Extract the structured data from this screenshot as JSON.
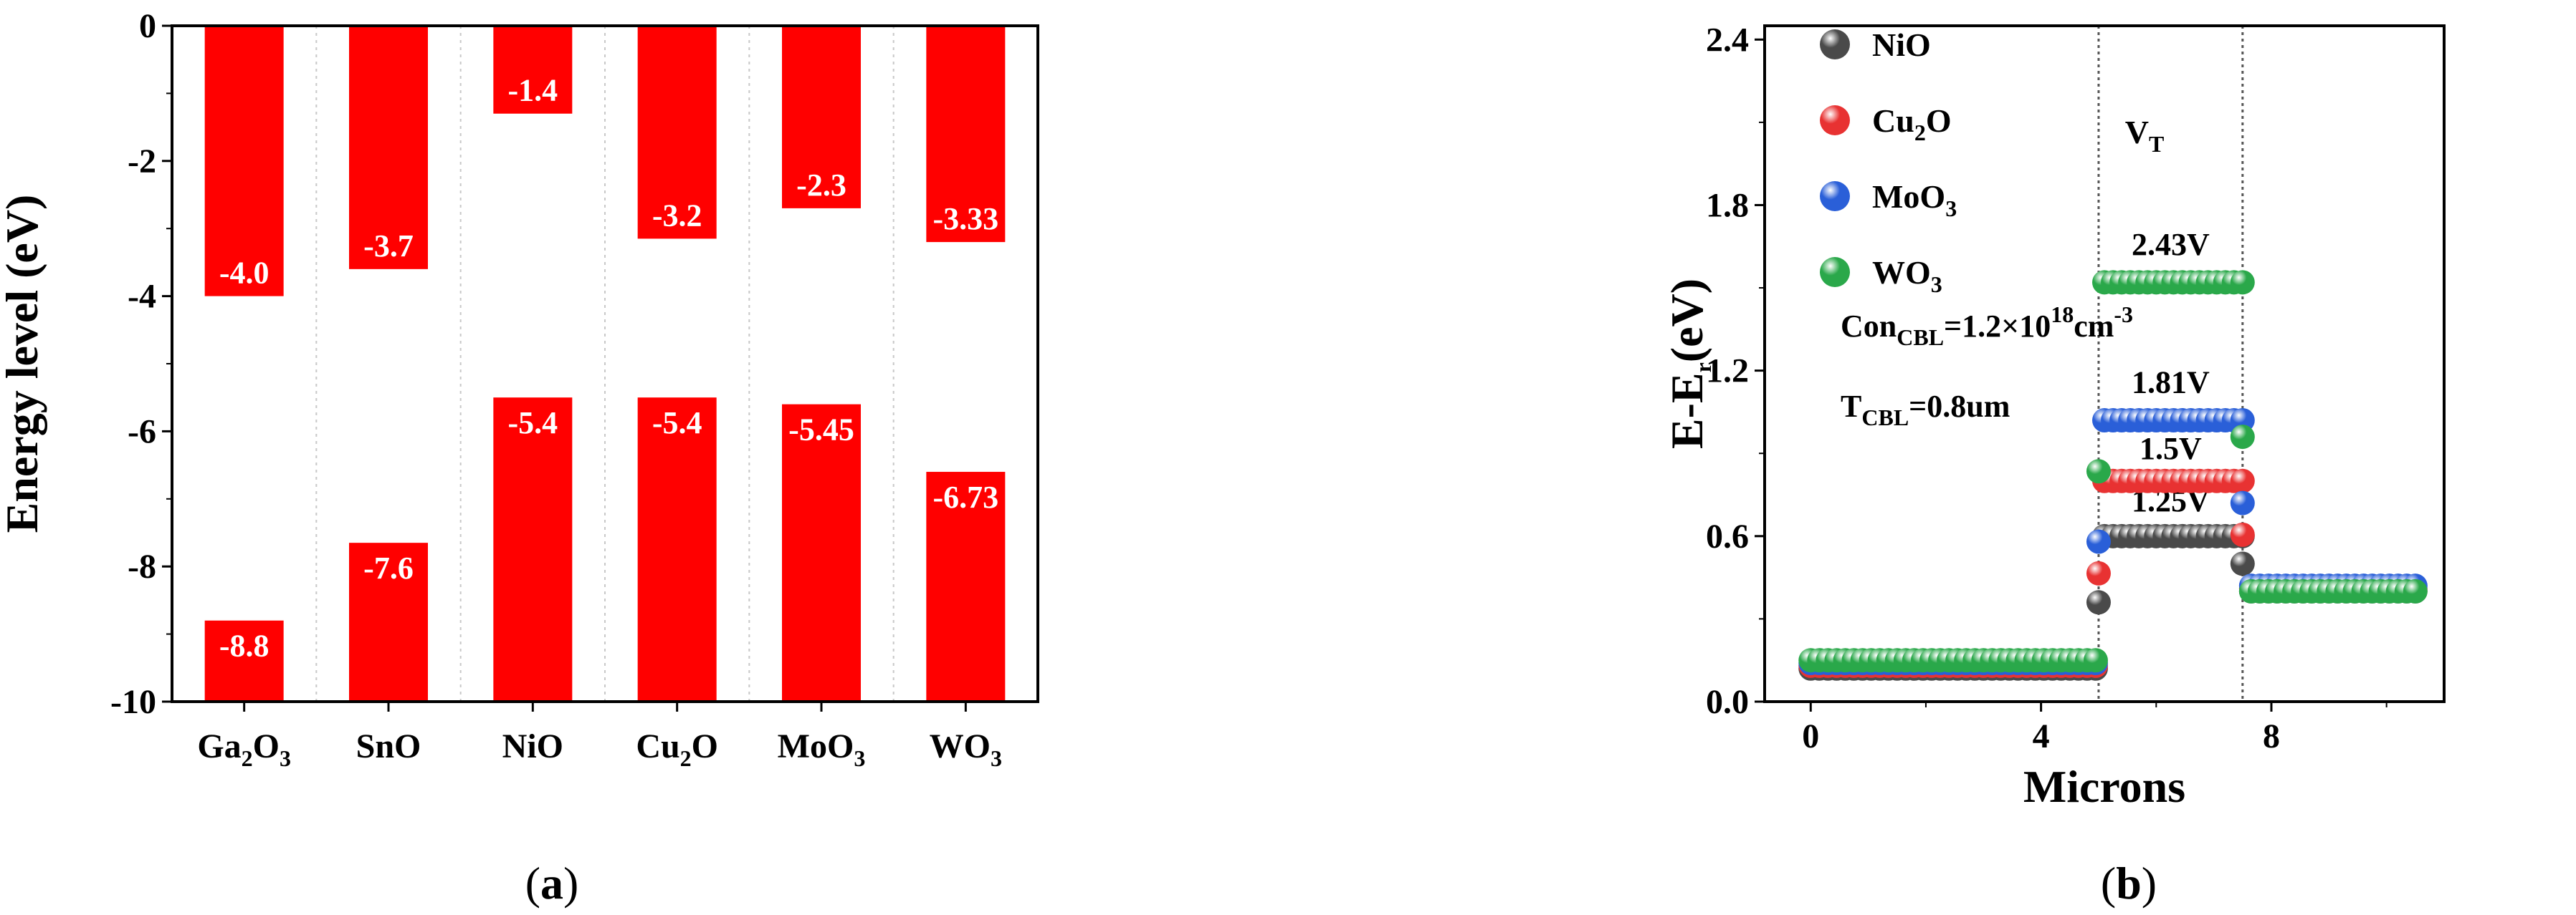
{
  "chart_data": [
    {
      "panel": "(a)",
      "type": "bar",
      "ylabel": "Energy level (eV)",
      "ylim": [
        -10,
        0
      ],
      "yticks": [
        0,
        -2,
        -4,
        -6,
        -8,
        -10
      ],
      "grid": "dotted vertical separators between categories",
      "bar_color": "#ff0000",
      "categories": [
        {
          "label": "Ga2O3",
          "parts": [
            [
              "Ga",
              "n"
            ],
            [
              "2",
              "sub"
            ],
            [
              "O",
              "n"
            ],
            [
              "3",
              "sub"
            ]
          ]
        },
        {
          "label": "SnO",
          "parts": [
            [
              "SnO",
              "n"
            ]
          ]
        },
        {
          "label": "NiO",
          "parts": [
            [
              "NiO",
              "n"
            ]
          ]
        },
        {
          "label": "Cu2O",
          "parts": [
            [
              "Cu",
              "n"
            ],
            [
              "2",
              "sub"
            ],
            [
              "O",
              "n"
            ]
          ]
        },
        {
          "label": "MoO3",
          "parts": [
            [
              "MoO",
              "n"
            ],
            [
              "3",
              "sub"
            ]
          ]
        },
        {
          "label": "WO3",
          "parts": [
            [
              "WO",
              "n"
            ],
            [
              "3",
              "sub"
            ]
          ]
        }
      ],
      "upper_bar_values": [
        -4.0,
        -3.7,
        -1.4,
        -3.2,
        -2.3,
        -3.33
      ],
      "upper_bar_labels": [
        "-4.0",
        "-3.7",
        "-1.4",
        "-3.2",
        "-2.3",
        "-3.33"
      ],
      "upper_bar_extent": [
        -4.0,
        -3.6,
        -1.3,
        -3.15,
        -2.7,
        -3.2
      ],
      "lower_bar_values": [
        -8.8,
        -7.6,
        -5.4,
        -5.4,
        -5.45,
        -6.73
      ],
      "lower_bar_labels": [
        "-8.8",
        "-7.6",
        "-5.4",
        "-5.4",
        "-5.45",
        "-6.73"
      ],
      "lower_bar_extent": [
        -8.8,
        -7.65,
        -5.5,
        -5.5,
        -5.6,
        -6.6
      ]
    },
    {
      "panel": "(b)",
      "type": "scatter",
      "xlabel": "Microns",
      "ylabel_parts": [
        [
          "E-E",
          "n"
        ],
        [
          "r",
          "sub"
        ],
        [
          "(eV)",
          "n"
        ]
      ],
      "xlim": [
        -0.8,
        11.0
      ],
      "ylim": [
        0.0,
        2.45
      ],
      "xticks": [
        0,
        4,
        8
      ],
      "yticks": [
        0.0,
        0.6,
        1.2,
        1.8,
        2.4
      ],
      "ytick_labels": [
        "0.0",
        "0.6",
        "1.2",
        "1.8",
        "2.4"
      ],
      "vlines": [
        5.0,
        7.5
      ],
      "legend_position": "top-left",
      "series": [
        {
          "name": "NiO",
          "name_parts": [
            [
              "NiO",
              "n"
            ]
          ],
          "color": "#4a4a4a",
          "low": 0.12,
          "plateau": 0.6,
          "tail": 0.4,
          "voltage_label": "1.25V",
          "label_y": 0.69
        },
        {
          "name": "Cu2O",
          "name_parts": [
            [
              "Cu",
              "n"
            ],
            [
              "2",
              "sub"
            ],
            [
              "O",
              "n"
            ]
          ],
          "color": "#e83232",
          "low": 0.13,
          "plateau": 0.8,
          "tail": 0.41,
          "voltage_label": "1.5V",
          "label_y": 0.88
        },
        {
          "name": "MoO3",
          "name_parts": [
            [
              "MoO",
              "n"
            ],
            [
              "3",
              "sub"
            ]
          ],
          "color": "#2a5fd8",
          "low": 0.14,
          "plateau": 1.02,
          "tail": 0.42,
          "voltage_label": "1.81V",
          "label_y": 1.12
        },
        {
          "name": "WO3",
          "name_parts": [
            [
              "WO",
              "n"
            ],
            [
              "3",
              "sub"
            ]
          ],
          "color": "#2aa84a",
          "low": 0.15,
          "plateau": 1.52,
          "tail": 0.4,
          "voltage_label": "2.43V",
          "label_y": 1.62
        }
      ],
      "annotations": {
        "vt": [
          [
            "V",
            "n"
          ],
          [
            "T",
            "sub"
          ]
        ],
        "concentration": [
          [
            "Con",
            "n"
          ],
          [
            "CBL",
            "sub"
          ],
          [
            "=1.2×10",
            "n"
          ],
          [
            "18",
            "sup"
          ],
          [
            "cm",
            "n"
          ],
          [
            "-3",
            "sup"
          ]
        ],
        "thickness": [
          [
            "T",
            "n"
          ],
          [
            "CBL",
            "sub"
          ],
          [
            "=0.8um",
            "n"
          ]
        ]
      }
    }
  ],
  "panel_labels": {
    "a": {
      "open": "(",
      "letter": "a",
      "close": ")"
    },
    "b": {
      "open": "(",
      "letter": "b",
      "close": ")"
    }
  }
}
